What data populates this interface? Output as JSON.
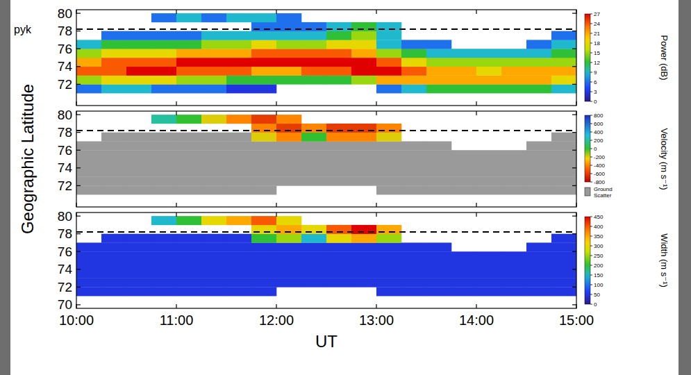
{
  "chart_data": [
    {
      "type": "heatmap",
      "annotation": "pyk",
      "hline": 78.2,
      "xlim": [
        10,
        15
      ],
      "xticks": [
        {
          "value": 10,
          "label": "10:00"
        },
        {
          "value": 11,
          "label": "11:00"
        },
        {
          "value": 12,
          "label": "12:00"
        },
        {
          "value": 13,
          "label": "13:00"
        },
        {
          "value": 14,
          "label": "14:00"
        },
        {
          "value": 15,
          "label": "15:00"
        }
      ],
      "ylim": [
        69.6,
        80.4
      ],
      "yticks": [
        72,
        74,
        76,
        78,
        80
      ],
      "tick_labels": "y",
      "x_bins": [
        10,
        10.25,
        10.5,
        10.75,
        11,
        11.25,
        11.5,
        11.75,
        12,
        12.25,
        12.5,
        12.75,
        13,
        13.25,
        13.5,
        13.75,
        14,
        14.25,
        14.5,
        14.75,
        15
      ],
      "y_bins": [
        70,
        71,
        72,
        73,
        74,
        75,
        76,
        77,
        78,
        79,
        80
      ],
      "cells": [
        [
          null,
          6,
          15,
          24,
          21,
          15,
          9,
          null,
          null,
          null
        ],
        [
          null,
          9,
          18,
          24,
          24,
          18,
          12,
          6,
          null,
          null
        ],
        [
          null,
          9,
          18,
          27,
          24,
          18,
          12,
          6,
          null,
          null
        ],
        [
          null,
          6,
          18,
          27,
          24,
          18,
          12,
          6,
          null,
          6
        ],
        [
          null,
          6,
          15,
          24,
          27,
          21,
          12,
          6,
          null,
          9
        ],
        [
          null,
          6,
          15,
          24,
          27,
          21,
          15,
          9,
          null,
          6
        ],
        [
          null,
          3,
          12,
          24,
          27,
          21,
          15,
          9,
          null,
          9
        ],
        [
          null,
          3,
          12,
          21,
          27,
          24,
          18,
          9,
          6,
          9
        ],
        [
          null,
          null,
          12,
          21,
          27,
          24,
          15,
          9,
          6,
          6
        ],
        [
          null,
          null,
          12,
          24,
          27,
          24,
          15,
          9,
          6,
          null
        ],
        [
          null,
          null,
          12,
          24,
          27,
          24,
          18,
          12,
          9,
          null
        ],
        [
          null,
          null,
          15,
          27,
          27,
          21,
          18,
          15,
          12,
          null
        ],
        [
          null,
          6,
          21,
          27,
          24,
          15,
          9,
          9,
          9,
          null
        ],
        [
          null,
          9,
          21,
          24,
          18,
          12,
          6,
          null,
          null,
          null
        ],
        [
          null,
          12,
          21,
          21,
          15,
          9,
          6,
          null,
          null,
          null
        ],
        [
          null,
          12,
          21,
          21,
          15,
          9,
          null,
          null,
          null,
          null
        ],
        [
          null,
          12,
          21,
          18,
          15,
          9,
          null,
          null,
          null,
          null
        ],
        [
          null,
          12,
          21,
          21,
          15,
          9,
          null,
          null,
          null,
          null
        ],
        [
          null,
          12,
          21,
          21,
          15,
          9,
          6,
          null,
          null,
          null
        ],
        [
          null,
          9,
          18,
          21,
          15,
          12,
          9,
          6,
          null,
          null
        ]
      ],
      "colorbar": {
        "label": "Power (dB)",
        "range": [
          0,
          27
        ],
        "ticks": [
          0,
          3,
          6,
          9,
          12,
          15,
          18,
          21,
          24,
          27
        ]
      }
    },
    {
      "type": "heatmap",
      "hline": 78.2,
      "ylabel": "Geographic Latitude",
      "xlim": [
        10,
        15
      ],
      "xticks": [
        {
          "value": 10,
          "label": "10:00"
        },
        {
          "value": 11,
          "label": "11:00"
        },
        {
          "value": 12,
          "label": "12:00"
        },
        {
          "value": 13,
          "label": "13:00"
        },
        {
          "value": 14,
          "label": "14:00"
        },
        {
          "value": 15,
          "label": "15:00"
        }
      ],
      "ylim": [
        69.6,
        80.4
      ],
      "yticks": [
        72,
        74,
        76,
        78,
        80
      ],
      "tick_labels": "y",
      "x_bins": [
        10,
        10.25,
        10.5,
        10.75,
        11,
        11.25,
        11.5,
        11.75,
        12,
        12.25,
        12.5,
        12.75,
        13,
        13.25,
        13.5,
        13.75,
        14,
        14.25,
        14.5,
        14.75,
        15
      ],
      "y_bins": [
        70,
        71,
        72,
        73,
        74,
        75,
        76,
        77,
        78,
        79,
        80
      ],
      "cells": [
        [
          null,
          null,
          null,
          null,
          null,
          null,
          null,
          null,
          null,
          null
        ],
        [
          null,
          null,
          null,
          null,
          null,
          null,
          null,
          null,
          null,
          null
        ],
        [
          null,
          null,
          null,
          null,
          null,
          null,
          null,
          null,
          null,
          null
        ],
        [
          null,
          null,
          null,
          null,
          null,
          null,
          null,
          null,
          null,
          200
        ],
        [
          null,
          null,
          null,
          null,
          null,
          null,
          null,
          null,
          null,
          0
        ],
        [
          null,
          null,
          null,
          null,
          null,
          null,
          null,
          null,
          null,
          -200
        ],
        [
          null,
          null,
          null,
          null,
          null,
          null,
          null,
          null,
          null,
          -400
        ],
        [
          null,
          null,
          null,
          null,
          null,
          null,
          null,
          -200,
          -400,
          -600
        ],
        [
          null,
          null,
          null,
          null,
          null,
          null,
          null,
          -400,
          -600,
          -400
        ],
        [
          null,
          null,
          null,
          null,
          null,
          null,
          null,
          0,
          -400,
          null
        ],
        [
          null,
          null,
          null,
          null,
          null,
          null,
          null,
          -400,
          -600,
          null
        ],
        [
          null,
          null,
          null,
          null,
          null,
          null,
          null,
          -400,
          -600,
          null
        ],
        [
          null,
          null,
          null,
          null,
          null,
          null,
          null,
          -200,
          -400,
          null
        ],
        [
          null,
          null,
          null,
          null,
          null,
          null,
          null,
          null,
          null,
          null
        ],
        [
          null,
          null,
          null,
          null,
          null,
          null,
          null,
          null,
          null,
          null
        ],
        [
          null,
          null,
          null,
          null,
          null,
          null,
          null,
          null,
          null,
          null
        ],
        [
          null,
          null,
          null,
          null,
          null,
          null,
          null,
          null,
          null,
          null
        ],
        [
          null,
          null,
          null,
          null,
          null,
          null,
          null,
          null,
          null,
          null
        ],
        [
          null,
          null,
          null,
          null,
          null,
          null,
          null,
          null,
          null,
          null
        ],
        [
          null,
          null,
          null,
          null,
          null,
          null,
          null,
          null,
          null,
          null
        ]
      ],
      "ground_scatter": [
        [
          0,
          1,
          1,
          1,
          1,
          1,
          1,
          0,
          0,
          0
        ],
        [
          0,
          1,
          1,
          1,
          1,
          1,
          1,
          1,
          0,
          0
        ],
        [
          0,
          1,
          1,
          1,
          1,
          1,
          1,
          1,
          0,
          0
        ],
        [
          0,
          1,
          1,
          1,
          1,
          1,
          1,
          1,
          0,
          0
        ],
        [
          0,
          1,
          1,
          1,
          1,
          1,
          1,
          1,
          0,
          0
        ],
        [
          0,
          1,
          1,
          1,
          1,
          1,
          1,
          1,
          0,
          0
        ],
        [
          0,
          1,
          1,
          1,
          1,
          1,
          1,
          1,
          0,
          0
        ],
        [
          0,
          1,
          1,
          1,
          1,
          1,
          1,
          0,
          0,
          0
        ],
        [
          0,
          0,
          1,
          1,
          1,
          1,
          1,
          0,
          0,
          0
        ],
        [
          0,
          0,
          1,
          1,
          1,
          1,
          1,
          0,
          0,
          0
        ],
        [
          0,
          0,
          1,
          1,
          1,
          1,
          1,
          0,
          0,
          0
        ],
        [
          0,
          0,
          1,
          1,
          1,
          1,
          1,
          0,
          0,
          0
        ],
        [
          0,
          1,
          1,
          1,
          1,
          1,
          1,
          0,
          0,
          0
        ],
        [
          0,
          1,
          1,
          1,
          1,
          1,
          1,
          0,
          0,
          0
        ],
        [
          0,
          1,
          1,
          1,
          1,
          1,
          1,
          0,
          0,
          0
        ],
        [
          0,
          1,
          1,
          1,
          1,
          1,
          0,
          0,
          0,
          0
        ],
        [
          0,
          1,
          1,
          1,
          1,
          1,
          0,
          0,
          0,
          0
        ],
        [
          0,
          1,
          1,
          1,
          1,
          1,
          0,
          0,
          0,
          0
        ],
        [
          0,
          1,
          1,
          1,
          1,
          1,
          1,
          0,
          0,
          0
        ],
        [
          0,
          1,
          1,
          1,
          1,
          1,
          1,
          1,
          0,
          0
        ]
      ],
      "ground_scatter_label": "Ground Scatter",
      "colorbar": {
        "label": "Velocity (m s⁻¹)",
        "range": [
          -800,
          800
        ],
        "ticks": [
          -800,
          -600,
          -400,
          -200,
          0,
          200,
          400,
          600,
          800
        ]
      }
    },
    {
      "type": "heatmap",
      "hline": 78.2,
      "xlabel": "UT",
      "xlim": [
        10,
        15
      ],
      "xticks": [
        {
          "value": 10,
          "label": "10:00"
        },
        {
          "value": 11,
          "label": "11:00"
        },
        {
          "value": 12,
          "label": "12:00"
        },
        {
          "value": 13,
          "label": "13:00"
        },
        {
          "value": 14,
          "label": "14:00"
        },
        {
          "value": 15,
          "label": "15:00"
        }
      ],
      "ylim": [
        69.6,
        80.4
      ],
      "yticks": [
        70,
        72,
        74,
        76,
        78,
        80
      ],
      "x_bins": [
        10,
        10.25,
        10.5,
        10.75,
        11,
        11.25,
        11.5,
        11.75,
        12,
        12.25,
        12.5,
        12.75,
        13,
        13.25,
        13.5,
        13.75,
        14,
        14.25,
        14.5,
        14.75,
        15
      ],
      "y_bins": [
        70,
        71,
        72,
        73,
        74,
        75,
        76,
        77,
        78,
        79,
        80
      ],
      "cells": [
        [
          null,
          50,
          50,
          50,
          50,
          50,
          50,
          null,
          null,
          null
        ],
        [
          null,
          50,
          50,
          50,
          50,
          50,
          50,
          50,
          null,
          null
        ],
        [
          null,
          50,
          50,
          50,
          50,
          50,
          50,
          50,
          null,
          null
        ],
        [
          null,
          50,
          50,
          50,
          50,
          50,
          50,
          50,
          null,
          150
        ],
        [
          null,
          50,
          50,
          50,
          50,
          50,
          50,
          50,
          null,
          200
        ],
        [
          null,
          50,
          50,
          50,
          50,
          50,
          50,
          50,
          null,
          300
        ],
        [
          null,
          50,
          50,
          50,
          50,
          50,
          50,
          50,
          null,
          350
        ],
        [
          null,
          50,
          50,
          50,
          50,
          50,
          50,
          200,
          300,
          400
        ],
        [
          null,
          null,
          50,
          50,
          50,
          50,
          50,
          250,
          350,
          300
        ],
        [
          null,
          null,
          50,
          50,
          50,
          50,
          50,
          150,
          300,
          null
        ],
        [
          null,
          null,
          50,
          50,
          50,
          50,
          50,
          300,
          400,
          null
        ],
        [
          null,
          null,
          50,
          50,
          50,
          50,
          50,
          350,
          450,
          null
        ],
        [
          null,
          50,
          50,
          50,
          50,
          50,
          50,
          250,
          350,
          null
        ],
        [
          null,
          50,
          50,
          50,
          50,
          50,
          50,
          null,
          null,
          null
        ],
        [
          null,
          50,
          50,
          50,
          50,
          50,
          50,
          null,
          null,
          null
        ],
        [
          null,
          50,
          50,
          50,
          50,
          50,
          null,
          null,
          null,
          null
        ],
        [
          null,
          50,
          50,
          50,
          50,
          50,
          null,
          null,
          null,
          null
        ],
        [
          null,
          50,
          50,
          50,
          50,
          50,
          null,
          null,
          null,
          null
        ],
        [
          null,
          50,
          50,
          50,
          50,
          50,
          50,
          null,
          null,
          null
        ],
        [
          null,
          50,
          50,
          50,
          50,
          50,
          50,
          50,
          null,
          null
        ]
      ],
      "colorbar": {
        "label": "Width (m s⁻¹)",
        "range": [
          0,
          450
        ],
        "ticks": [
          0,
          50,
          100,
          150,
          200,
          250,
          300,
          350,
          400,
          450
        ]
      }
    }
  ]
}
